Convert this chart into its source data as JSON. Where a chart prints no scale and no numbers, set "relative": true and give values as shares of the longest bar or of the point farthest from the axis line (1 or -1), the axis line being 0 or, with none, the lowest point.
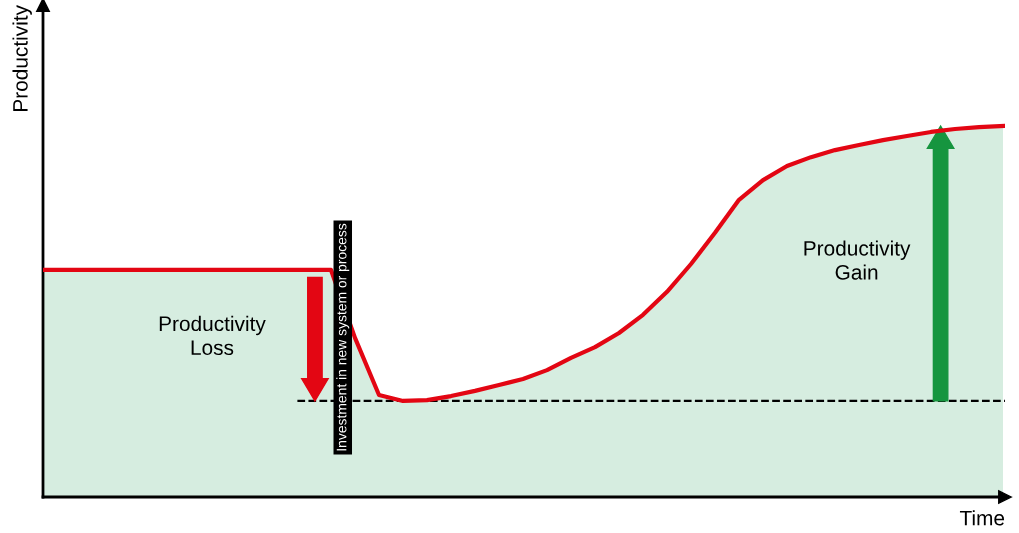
{
  "chart_data": {
    "type": "area",
    "relative": true,
    "xlabel": "Time",
    "ylabel": "Productivity",
    "colors": [
      "#d6ede0"
    ],
    "categories": [
      null,
      null,
      null,
      null,
      null,
      null,
      null,
      null,
      null,
      null,
      null,
      null,
      null,
      null,
      null,
      null,
      null,
      null,
      null,
      null,
      null,
      null,
      null,
      null,
      null,
      null,
      null,
      null,
      null,
      null,
      null,
      null,
      null,
      null,
      null,
      null,
      null,
      null,
      null,
      null,
      null
    ],
    "series": [
      {
        "color": "#e30613",
        "values": [
          0.612,
          0.612,
          0.612,
          0.612,
          0.612,
          0.612,
          0.612,
          0.612,
          0.612,
          0.612,
          0.612,
          0.612,
          0.612,
          0.429,
          0.275,
          0.259,
          0.261,
          0.272,
          0.286,
          0.302,
          0.318,
          0.342,
          0.375,
          0.404,
          0.442,
          0.491,
          0.553,
          0.628,
          0.712,
          0.801,
          0.854,
          0.892,
          0.916,
          0.935,
          0.949,
          0.962,
          0.973,
          0.984,
          0.992,
          0.997,
          1
        ]
      }
    ],
    "ref_lines": [
      {
        "axis": "y",
        "value": 0.259,
        "color": "#000000",
        "line_style": "dashed"
      }
    ],
    "annotations": [
      "Investment in new system or process",
      "Productivity\nLoss",
      "Productivity\nGain"
    ]
  }
}
